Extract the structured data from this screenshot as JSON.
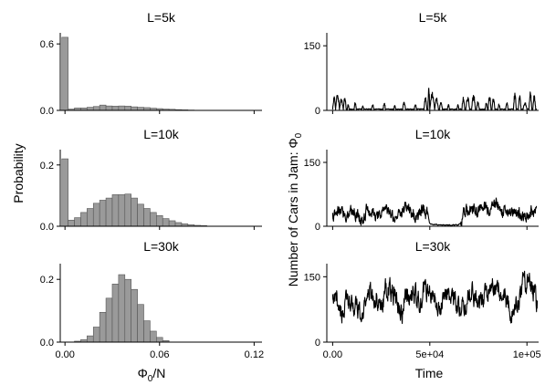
{
  "figure": {
    "left_ylabel": "Probability",
    "left_xlabel": "Φ",
    "left_xlabel_sub": "0",
    "left_xlabel_tail": "/N",
    "right_ylabel": "Number of Cars in Jam: Φ",
    "right_ylabel_sub": "0",
    "right_xlabel": "Time"
  },
  "chart_data": [
    {
      "type": "bar",
      "title": "L=5k",
      "ylim": [
        0,
        0.7
      ],
      "xlim": [
        -0.003,
        0.125
      ],
      "yticks": [
        {
          "v": 0.0,
          "label": "0.0"
        },
        {
          "v": 0.6,
          "label": "0.6"
        }
      ],
      "xticks": [
        0.0,
        0.06,
        0.12
      ],
      "bin_width": 0.004,
      "bin_starts": [
        -0.002,
        0.002,
        0.006,
        0.01,
        0.014,
        0.018,
        0.022,
        0.026,
        0.03,
        0.034,
        0.038,
        0.042,
        0.046,
        0.05,
        0.054,
        0.058,
        0.062,
        0.066,
        0.07,
        0.074,
        0.078
      ],
      "values": [
        0.66,
        0.012,
        0.022,
        0.022,
        0.028,
        0.035,
        0.048,
        0.04,
        0.038,
        0.04,
        0.038,
        0.032,
        0.028,
        0.025,
        0.02,
        0.016,
        0.012,
        0.01,
        0.007,
        0.005,
        0.003
      ]
    },
    {
      "type": "bar",
      "title": "L=10k",
      "ylim": [
        0,
        0.25
      ],
      "xlim": [
        -0.003,
        0.125
      ],
      "yticks": [
        {
          "v": 0.0,
          "label": "0.0"
        },
        {
          "v": 0.2,
          "label": "0.2"
        }
      ],
      "xticks": [
        0.0,
        0.06,
        0.12
      ],
      "bin_width": 0.004,
      "bin_starts": [
        -0.002,
        0.002,
        0.006,
        0.01,
        0.014,
        0.018,
        0.022,
        0.026,
        0.03,
        0.034,
        0.038,
        0.042,
        0.046,
        0.05,
        0.054,
        0.058,
        0.062,
        0.066,
        0.07,
        0.074,
        0.078,
        0.082,
        0.086
      ],
      "values": [
        0.22,
        0.02,
        0.028,
        0.045,
        0.058,
        0.075,
        0.085,
        0.092,
        0.103,
        0.103,
        0.105,
        0.092,
        0.072,
        0.058,
        0.045,
        0.035,
        0.025,
        0.018,
        0.012,
        0.008,
        0.005,
        0.003,
        0.002
      ]
    },
    {
      "type": "bar",
      "title": "L=30k",
      "ylim": [
        0,
        0.25
      ],
      "xlim": [
        -0.003,
        0.125
      ],
      "yticks": [
        {
          "v": 0.0,
          "label": "0.0"
        },
        {
          "v": 0.2,
          "label": "0.2"
        }
      ],
      "xticks": [
        {
          "v": 0.0,
          "label": "0.00"
        },
        {
          "v": 0.06,
          "label": "0.06"
        },
        {
          "v": 0.12,
          "label": "0.12"
        }
      ],
      "bin_width": 0.004,
      "bin_starts": [
        0.006,
        0.01,
        0.014,
        0.018,
        0.022,
        0.026,
        0.03,
        0.034,
        0.038,
        0.042,
        0.046,
        0.05,
        0.054,
        0.058,
        0.062
      ],
      "values": [
        0.003,
        0.008,
        0.02,
        0.048,
        0.095,
        0.14,
        0.185,
        0.215,
        0.2,
        0.168,
        0.12,
        0.068,
        0.035,
        0.015,
        0.005
      ]
    },
    {
      "type": "line",
      "title": "L=5k",
      "ylim": [
        0,
        180
      ],
      "xlim": [
        -3000,
        106000
      ],
      "yticks": [
        {
          "v": 0,
          "label": "0"
        },
        {
          "v": 150,
          "label": "150"
        }
      ],
      "xticks": [
        0,
        50000,
        100000
      ],
      "baseline": 2,
      "spikes": [
        [
          0,
          1500,
          32
        ],
        [
          1500,
          2000,
          40
        ],
        [
          3500,
          2000,
          26
        ],
        [
          5500,
          1500,
          30
        ],
        [
          7500,
          1000,
          14
        ],
        [
          11000,
          1200,
          18
        ],
        [
          15000,
          1000,
          10
        ],
        [
          20000,
          1200,
          15
        ],
        [
          26000,
          1200,
          18
        ],
        [
          31500,
          1000,
          12
        ],
        [
          36000,
          1500,
          20
        ],
        [
          42000,
          1200,
          14
        ],
        [
          47000,
          1500,
          30
        ],
        [
          49000,
          1000,
          52
        ],
        [
          50000,
          2500,
          40
        ],
        [
          52500,
          2000,
          28
        ],
        [
          55000,
          1500,
          22
        ],
        [
          59000,
          1200,
          12
        ],
        [
          64000,
          1000,
          14
        ],
        [
          66500,
          1500,
          30
        ],
        [
          68500,
          2000,
          32
        ],
        [
          71500,
          2000,
          38
        ],
        [
          74000,
          1500,
          20
        ],
        [
          78500,
          1200,
          18
        ],
        [
          80000,
          1500,
          36
        ],
        [
          82000,
          1500,
          30
        ],
        [
          85000,
          1200,
          14
        ],
        [
          89000,
          1300,
          18
        ],
        [
          93000,
          1500,
          40
        ],
        [
          95500,
          1500,
          34
        ],
        [
          98000,
          2000,
          18
        ],
        [
          101000,
          1500,
          42
        ],
        [
          103000,
          1500,
          34
        ]
      ]
    },
    {
      "type": "line",
      "title": "L=10k",
      "ylim": [
        0,
        180
      ],
      "xlim": [
        -3000,
        106000
      ],
      "yticks": [
        {
          "v": 0,
          "label": "0"
        },
        {
          "v": 150,
          "label": "150"
        }
      ],
      "xticks": [
        0,
        50000,
        100000
      ],
      "segments": [
        [
          0,
          1500,
          22
        ],
        [
          1500,
          3000,
          35
        ],
        [
          4500,
          3000,
          28
        ],
        [
          7500,
          3000,
          38
        ],
        [
          10500,
          3000,
          27
        ],
        [
          13500,
          2000,
          14
        ],
        [
          15500,
          3000,
          38
        ],
        [
          18500,
          3000,
          30
        ],
        [
          21500,
          2500,
          18
        ],
        [
          24000,
          3000,
          42
        ],
        [
          27000,
          3000,
          30
        ],
        [
          30000,
          3000,
          22
        ],
        [
          33000,
          2500,
          35
        ],
        [
          35500,
          3500,
          48
        ],
        [
          39000,
          2500,
          30
        ],
        [
          41500,
          2000,
          18
        ],
        [
          43500,
          3000,
          40
        ],
        [
          46500,
          2500,
          28
        ],
        [
          49000,
          1500,
          5
        ],
        [
          50500,
          14000,
          3
        ],
        [
          64500,
          1500,
          5
        ],
        [
          66000,
          3000,
          32
        ],
        [
          69000,
          3000,
          42
        ],
        [
          72000,
          3000,
          38
        ],
        [
          75000,
          3000,
          48
        ],
        [
          78000,
          3000,
          34
        ],
        [
          81000,
          3000,
          50
        ],
        [
          84000,
          3000,
          38
        ],
        [
          87000,
          3000,
          30
        ],
        [
          90000,
          3000,
          42
        ],
        [
          93000,
          3000,
          30
        ],
        [
          96000,
          3000,
          20
        ],
        [
          99000,
          3000,
          36
        ],
        [
          102000,
          2000,
          26
        ],
        [
          104000,
          1000,
          38
        ]
      ],
      "noise_amplitude": 24
    },
    {
      "type": "line",
      "title": "L=30k",
      "ylim": [
        0,
        180
      ],
      "xlim": [
        -3000,
        106000
      ],
      "yticks": [
        {
          "v": 0,
          "label": "0"
        },
        {
          "v": 150,
          "label": "150"
        }
      ],
      "xticks": [
        {
          "v": 0,
          "label": "0.00"
        },
        {
          "v": 50000,
          "label": "5e+04"
        },
        {
          "v": 100000,
          "label": "1e+05"
        }
      ],
      "segments": [
        [
          0,
          2500,
          92
        ],
        [
          2500,
          3000,
          70
        ],
        [
          5500,
          3500,
          100
        ],
        [
          9000,
          3000,
          82
        ],
        [
          12000,
          3500,
          60
        ],
        [
          15500,
          3500,
          118
        ],
        [
          19000,
          3000,
          105
        ],
        [
          22000,
          3500,
          85
        ],
        [
          25500,
          3500,
          122
        ],
        [
          29000,
          3000,
          112
        ],
        [
          32000,
          3500,
          70
        ],
        [
          35500,
          3500,
          100
        ],
        [
          39000,
          3000,
          115
        ],
        [
          42000,
          3000,
          90
        ],
        [
          45000,
          3500,
          118
        ],
        [
          48500,
          3500,
          105
        ],
        [
          52000,
          3000,
          75
        ],
        [
          55000,
          3500,
          110
        ],
        [
          58500,
          3500,
          98
        ],
        [
          62000,
          3500,
          80
        ],
        [
          65500,
          3500,
          95
        ],
        [
          69000,
          3500,
          110
        ],
        [
          72500,
          3500,
          88
        ],
        [
          76000,
          3500,
          105
        ],
        [
          79500,
          3500,
          125
        ],
        [
          83000,
          3500,
          110
        ],
        [
          86500,
          3500,
          92
        ],
        [
          90000,
          3500,
          70
        ],
        [
          93500,
          3000,
          100
        ],
        [
          96500,
          3000,
          140
        ],
        [
          99500,
          2500,
          150
        ],
        [
          102000,
          2000,
          110
        ],
        [
          104000,
          1500,
          88
        ]
      ],
      "noise_amplitude": 38
    }
  ]
}
